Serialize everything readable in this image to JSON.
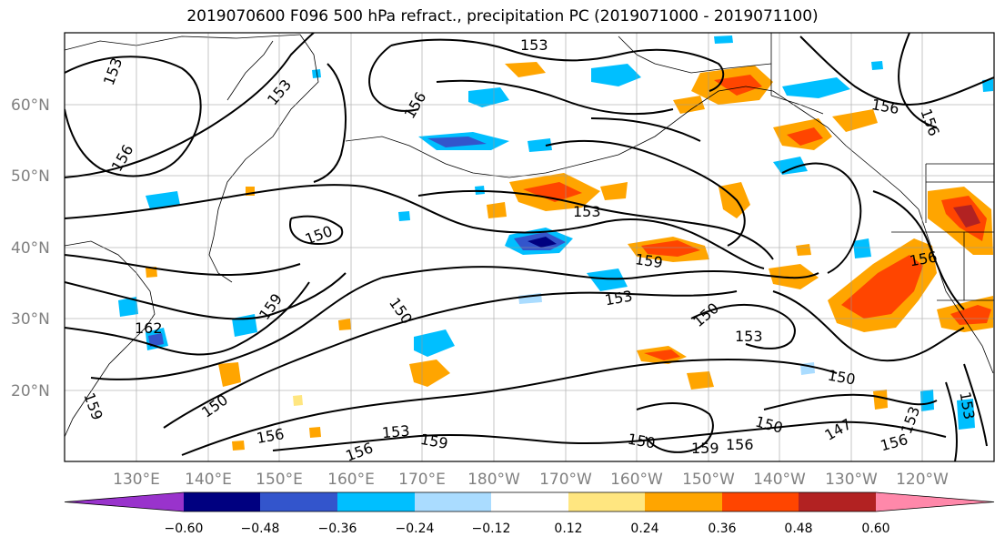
{
  "title": "2019070600 F096 500 hPa refract., precipitation PC (2019071000 - 2019071100)",
  "lat_labels": [
    "60°N",
    "50°N",
    "40°N",
    "30°N",
    "20°N"
  ],
  "lon_labels": [
    "130°E",
    "140°E",
    "150°E",
    "160°E",
    "170°E",
    "180°W",
    "170°W",
    "160°W",
    "150°W",
    "140°W",
    "130°W",
    "120°W"
  ],
  "colorbar": {
    "colors": [
      "#9933cc",
      "#000080",
      "#3355cc",
      "#00bfff",
      "#aadcff",
      "#ffffff",
      "#ffe680",
      "#ffa500",
      "#ff4500",
      "#b22222",
      "#ff88aa"
    ],
    "tick_labels": [
      "−0.60",
      "−0.48",
      "−0.36",
      "−0.24",
      "−0.12",
      "0.12",
      "0.24",
      "0.36",
      "0.48",
      "0.60"
    ],
    "extend": "both"
  },
  "contour_labels": [
    "153",
    "153",
    "156",
    "156",
    "156",
    "150",
    "153",
    "159",
    "153",
    "150",
    "150",
    "153",
    "162",
    "159",
    "150",
    "156",
    "153",
    "159",
    "156",
    "150",
    "159",
    "156",
    "150",
    "147",
    "150",
    "153",
    "156",
    "156",
    "156",
    "153",
    "159",
    "153"
  ]
}
